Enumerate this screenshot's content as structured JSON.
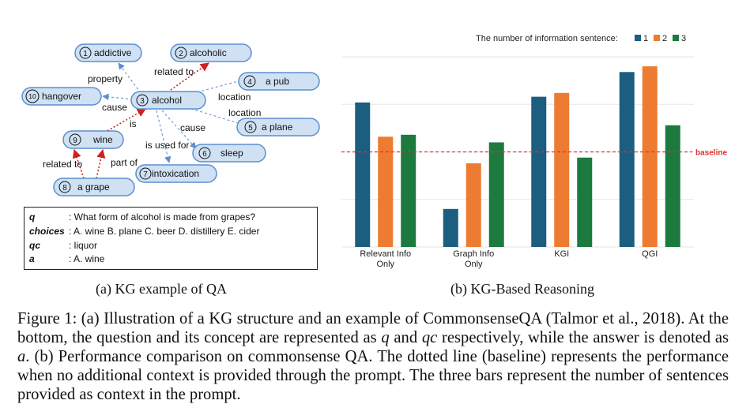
{
  "kg": {
    "nodes": [
      {
        "id": "n1",
        "num": "1",
        "label": "addictive"
      },
      {
        "id": "n2",
        "num": "2",
        "label": "alcoholic"
      },
      {
        "id": "n3",
        "num": "3",
        "label": "alcohol"
      },
      {
        "id": "n4",
        "num": "4",
        "label": "a pub"
      },
      {
        "id": "n5",
        "num": "5",
        "label": "a plane"
      },
      {
        "id": "n6",
        "num": "6",
        "label": "sleep"
      },
      {
        "id": "n7",
        "num": "7",
        "label": "intoxication"
      },
      {
        "id": "n8",
        "num": "8",
        "label": "a grape"
      },
      {
        "id": "n9",
        "num": "9",
        "label": "wine"
      },
      {
        "id": "n10",
        "num": "10",
        "label": "hangover"
      }
    ],
    "edge_labels": {
      "property": "property",
      "related_to_top": "related to",
      "location1": "location",
      "location2": "location",
      "cause1": "cause",
      "is": "is",
      "cause2": "cause",
      "is_used_for": "is used for",
      "related_to_bottom": "related to",
      "part_of": "part of"
    }
  },
  "qa": {
    "q_key": "q",
    "q_val": ": What form of alcohol is made from grapes?",
    "choices_key": "choices",
    "choices_val": ": A. wine B. plane C. beer D. distillery E. cider",
    "qc_key": "qc",
    "qc_val": ": liquor",
    "a_key": "a",
    "a_val": ": A. wine"
  },
  "captions": {
    "a": "(a) KG example of QA",
    "b": "(b) KG-Based Reasoning"
  },
  "figure_caption": {
    "t1": "Figure 1: (a) Illustration of a KG structure and an example of CommonsenseQA (Talmor et al., 2018). At the bottom, the question and its concept are represented as ",
    "q": "q",
    "t2": " and ",
    "qc": "qc",
    "t3": " respectively, while the answer is denoted as ",
    "a": "a",
    "t4": ". (b) Performance comparison on commonsense QA. The dotted line (baseline) represents the performance when no additional context is provided through the prompt. The three bars represent the number of sentences provided as context in the prompt."
  },
  "chart_data": {
    "type": "bar",
    "legend_title": "The number of information sentence:",
    "legend_position": "top-right",
    "categories": [
      "Relevant Info\nOnly",
      "Graph Info\nOnly",
      "KGI",
      "QGI"
    ],
    "series": [
      {
        "name": "1",
        "color": "#1b5e80",
        "values": [
          0.76,
          0.2,
          0.79,
          0.92
        ]
      },
      {
        "name": "2",
        "color": "#ee7b32",
        "values": [
          0.58,
          0.44,
          0.81,
          0.95
        ]
      },
      {
        "name": "3",
        "color": "#1c7a3f",
        "values": [
          0.59,
          0.55,
          0.47,
          0.64
        ]
      }
    ],
    "baseline": {
      "label": "baseline",
      "value": 0.5,
      "color": "#e03030"
    },
    "ylim": [
      0,
      1
    ],
    "grid": true
  }
}
